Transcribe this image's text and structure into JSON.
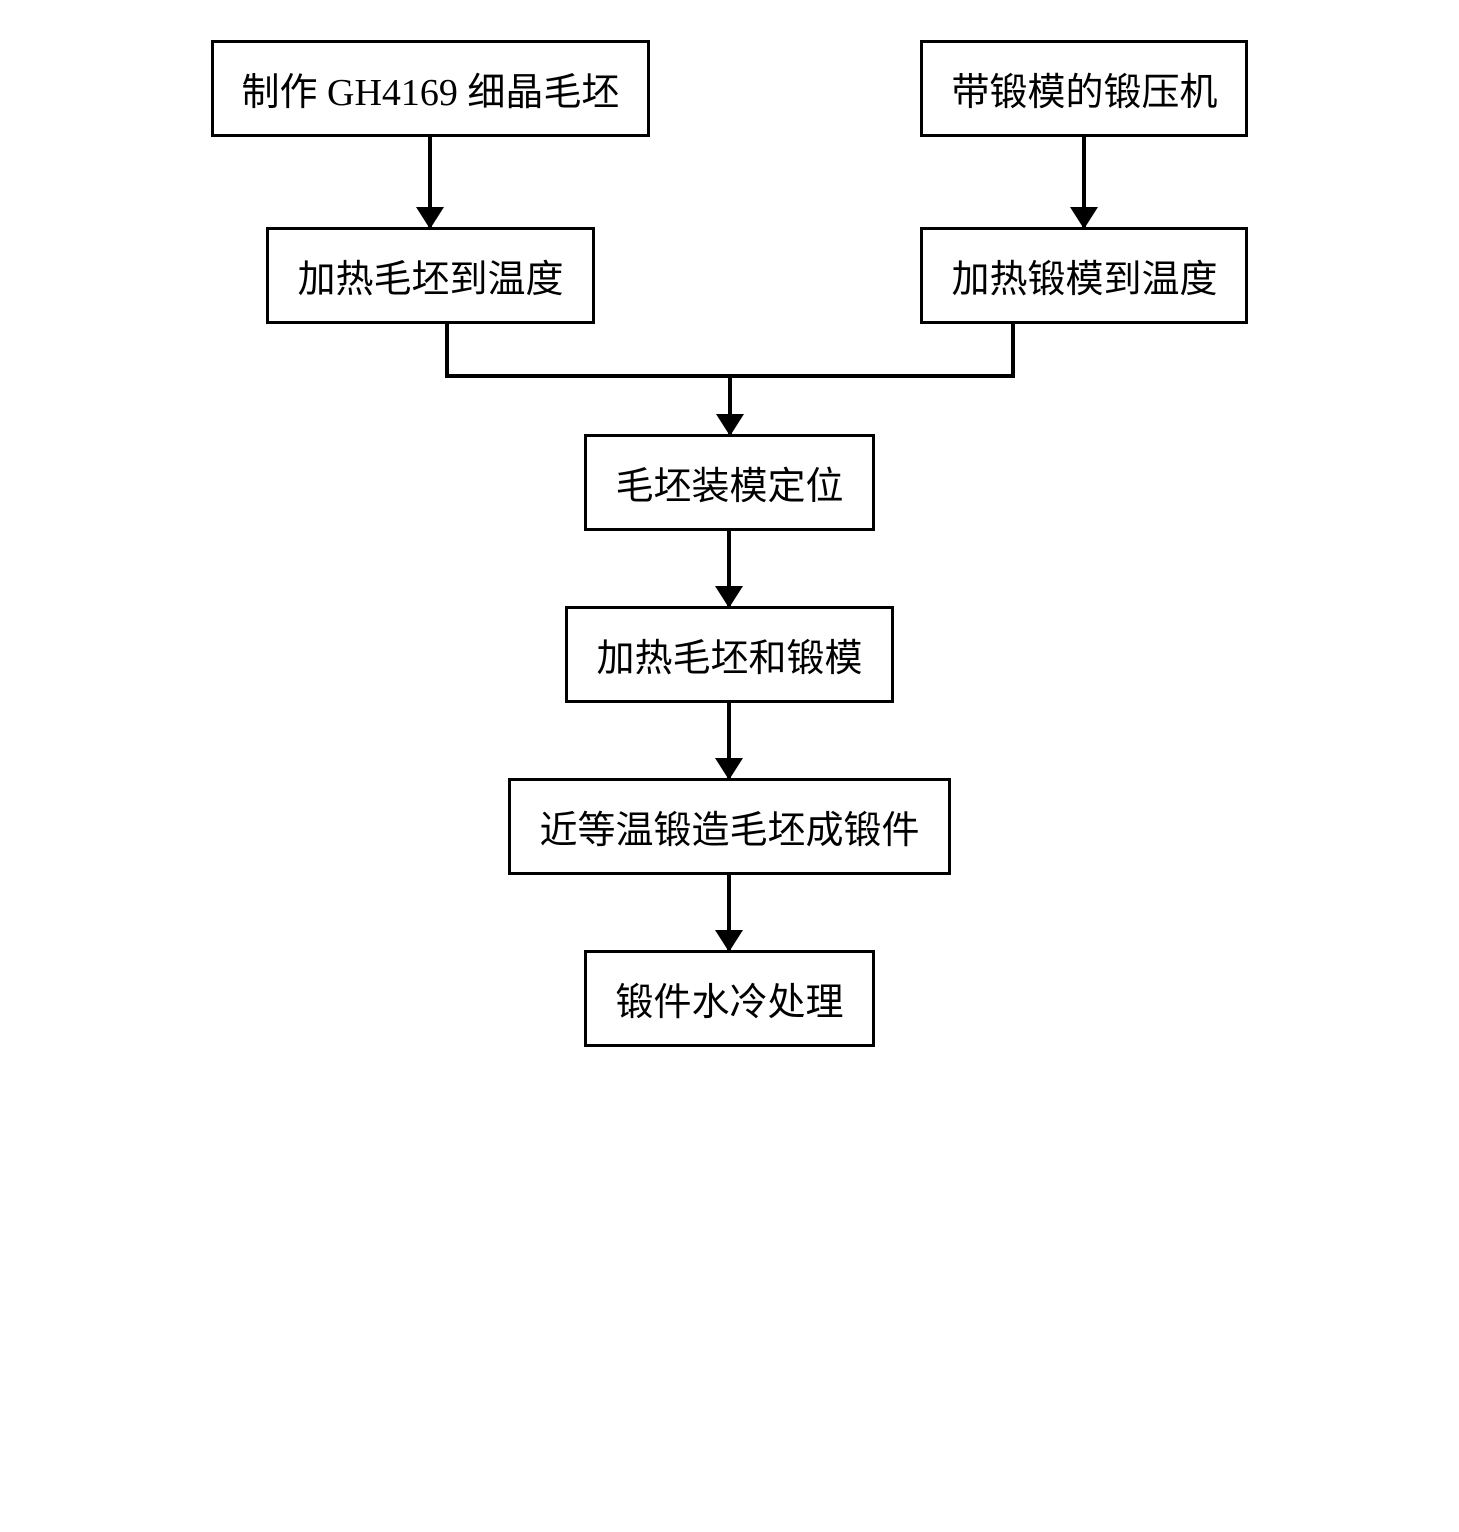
{
  "flowchart": {
    "type": "flowchart",
    "background_color": "#ffffff",
    "node_border_color": "#000000",
    "node_border_width": 3,
    "node_fill_color": "#ffffff",
    "text_color": "#000000",
    "font_size": 38,
    "font_family": "SimSun",
    "arrow_color": "#000000",
    "arrow_width": 4,
    "arrowhead_size": 22,
    "nodes": {
      "left_top": "制作 GH4169 细晶毛坯",
      "right_top": "带锻模的锻压机",
      "left_second": "加热毛坯到温度",
      "right_second": "加热锻模到温度",
      "step3": "毛坯装模定位",
      "step4": "加热毛坯和锻模",
      "step5": "近等温锻造毛坯成锻件",
      "step6": "锻件水冷处理"
    },
    "edges": [
      {
        "from": "left_top",
        "to": "left_second"
      },
      {
        "from": "right_top",
        "to": "right_second"
      },
      {
        "from": "left_second",
        "to": "step3",
        "merge": true
      },
      {
        "from": "right_second",
        "to": "step3",
        "merge": true
      },
      {
        "from": "step3",
        "to": "step4"
      },
      {
        "from": "step4",
        "to": "step5"
      },
      {
        "from": "step5",
        "to": "step6"
      }
    ],
    "layout": {
      "top_branch_gap": 270,
      "vertical_arrow_length": 90,
      "box_padding_v": 18,
      "box_padding_h": 28
    }
  }
}
